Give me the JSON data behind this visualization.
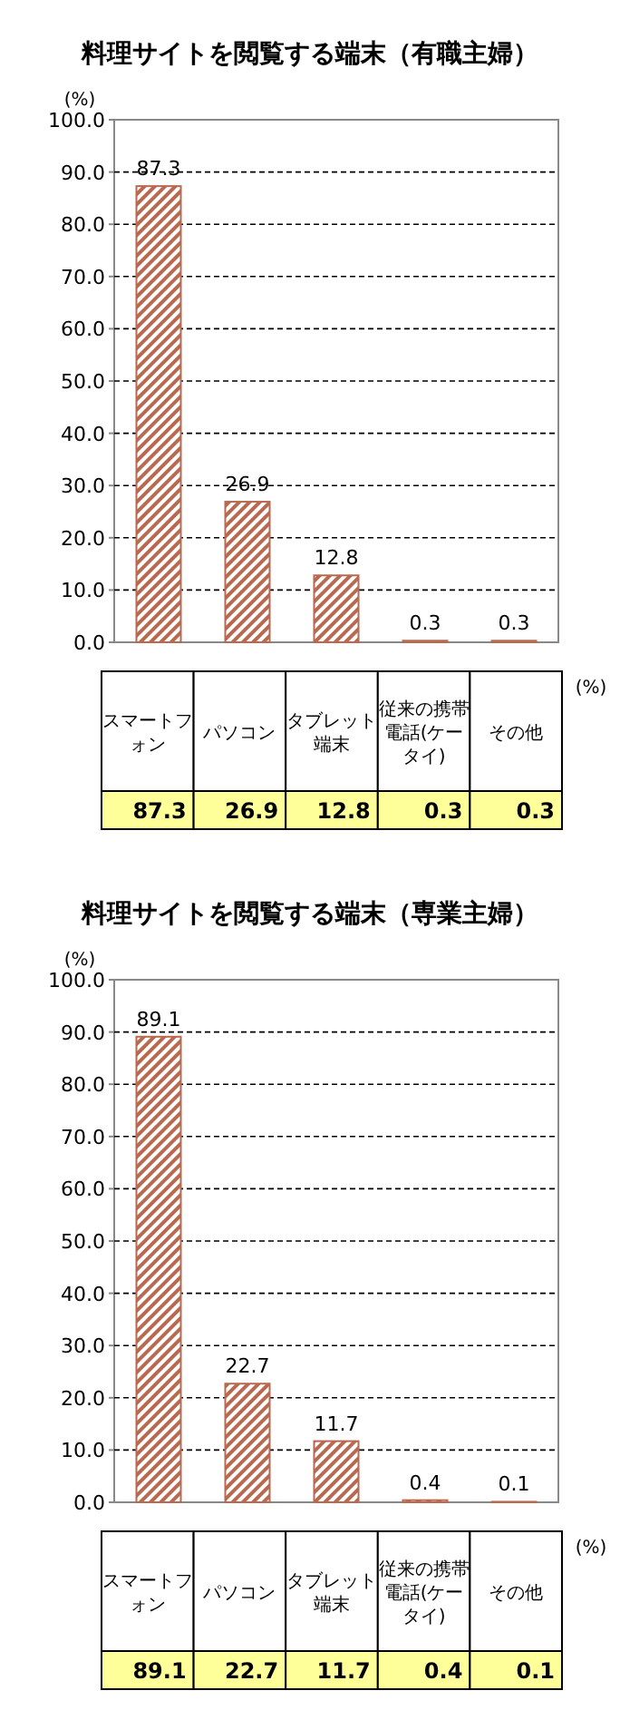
{
  "chart_data": [
    {
      "type": "bar",
      "title": "料理サイトを閲覧する端末（有職主婦）",
      "ylabel": "(%)",
      "categories": [
        "スマートフォン",
        "パソコン",
        "タブレット端末",
        "従来の携帯電話(ケータイ)",
        "その他"
      ],
      "values": [
        87.3,
        26.9,
        12.8,
        0.3,
        0.3
      ],
      "value_labels": [
        "87.3",
        "26.9",
        "12.8",
        "0.3",
        "0.3"
      ],
      "color": "#b8694f",
      "ylim": [
        0,
        100
      ],
      "yticks": [
        {
          "value": 0,
          "label": "0.0"
        },
        {
          "value": 10,
          "label": "10.0"
        },
        {
          "value": 20,
          "label": "20.0"
        },
        {
          "value": 30,
          "label": "30.0"
        },
        {
          "value": 40,
          "label": "40.0"
        },
        {
          "value": 50,
          "label": "50.0"
        },
        {
          "value": 60,
          "label": "60.0"
        },
        {
          "value": 70,
          "label": "70.0"
        },
        {
          "value": 80,
          "label": "80.0"
        },
        {
          "value": 90,
          "label": "90.0"
        },
        {
          "value": 100,
          "label": "100.0"
        }
      ],
      "grid": "y",
      "data_labels": true,
      "annotations": [
        "(%)"
      ]
    },
    {
      "type": "bar",
      "title": "料理サイトを閲覧する端末（専業主婦）",
      "ylabel": "(%)",
      "categories": [
        "スマートフォン",
        "パソコン",
        "タブレット端末",
        "従来の携帯電話(ケータイ)",
        "その他"
      ],
      "values": [
        89.1,
        22.7,
        11.7,
        0.4,
        0.1
      ],
      "value_labels": [
        "89.1",
        "22.7",
        "11.7",
        "0.4",
        "0.1"
      ],
      "color": "#b8694f",
      "ylim": [
        0,
        100
      ],
      "yticks": [
        {
          "value": 0,
          "label": "0.0"
        },
        {
          "value": 10,
          "label": "10.0"
        },
        {
          "value": 20,
          "label": "20.0"
        },
        {
          "value": 30,
          "label": "30.0"
        },
        {
          "value": 40,
          "label": "40.0"
        },
        {
          "value": 50,
          "label": "50.0"
        },
        {
          "value": 60,
          "label": "60.0"
        },
        {
          "value": 70,
          "label": "70.0"
        },
        {
          "value": 80,
          "label": "80.0"
        },
        {
          "value": 90,
          "label": "90.0"
        },
        {
          "value": 100,
          "label": "100.0"
        }
      ],
      "grid": "y",
      "data_labels": true,
      "annotations": [
        "(%)"
      ]
    }
  ]
}
